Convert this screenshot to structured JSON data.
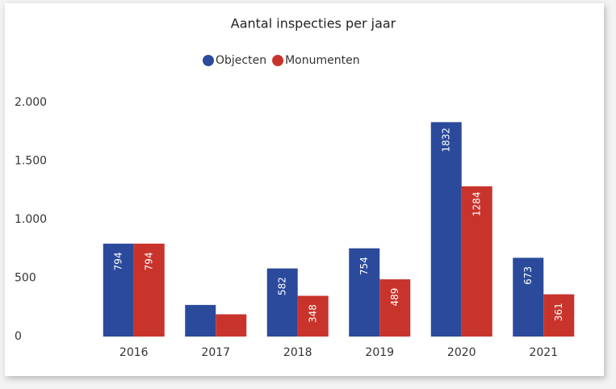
{
  "chart_data": {
    "type": "bar",
    "title": "Aantal inspecties per jaar",
    "categories": [
      "2016",
      "2017",
      "2018",
      "2019",
      "2020",
      "2021"
    ],
    "series": [
      {
        "name": "Objecten",
        "color": "#2b4a9b",
        "values": [
          794,
          270,
          582,
          754,
          1832,
          673
        ],
        "value_labels": [
          "794",
          null,
          "582",
          "754",
          "1832",
          "673"
        ]
      },
      {
        "name": "Monumenten",
        "color": "#c8342b",
        "values": [
          794,
          190,
          348,
          489,
          1284,
          361
        ],
        "value_labels": [
          "794",
          null,
          "348",
          "489",
          "1284",
          "361"
        ]
      }
    ],
    "ylim": [
      0,
      2000
    ],
    "yticks": [
      0,
      500,
      {
        "value": 1000,
        "label": "1.000"
      },
      {
        "value": 1500,
        "label": "1.500"
      },
      {
        "value": 2000,
        "label": "2.000"
      }
    ],
    "grid": false,
    "legend": "top"
  }
}
